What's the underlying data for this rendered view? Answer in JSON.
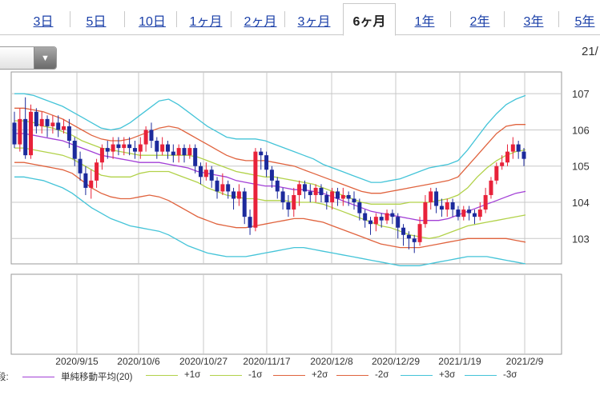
{
  "tabs": [
    {
      "label": "3日",
      "active": false
    },
    {
      "label": "5日",
      "active": false
    },
    {
      "label": "10日",
      "active": false
    },
    {
      "label": "1ヶ月",
      "active": false
    },
    {
      "label": "2ヶ月",
      "active": false
    },
    {
      "label": "3ヶ月",
      "active": false
    },
    {
      "label": "6ヶ月",
      "active": true
    },
    {
      "label": "1年",
      "active": false
    },
    {
      "label": "2年",
      "active": false
    },
    {
      "label": "3年",
      "active": false
    },
    {
      "label": "5年",
      "active": false
    }
  ],
  "toolbar": {
    "dropdown_icon": "triangle-down-icon",
    "corner_date": "21/"
  },
  "legend": {
    "prefix": "段:",
    "items": [
      {
        "label": "単純移動平均(20)",
        "color": "#a23fd6"
      },
      {
        "label": "+1σ",
        "color": "#b2d24a"
      },
      {
        "label": "-1σ",
        "color": "#b2d24a"
      },
      {
        "label": "+2σ",
        "color": "#e0633e"
      },
      {
        "label": "-2σ",
        "color": "#e0633e"
      },
      {
        "label": "+3σ",
        "color": "#44c4d8"
      },
      {
        "label": "-3σ",
        "color": "#44c4d8"
      }
    ]
  },
  "colors": {
    "up": "#e8223a",
    "down": "#1c2a9c",
    "grid": "#c8c8c8",
    "frame": "#9a9a9a"
  },
  "chart_data": {
    "type": "candlestick",
    "ylim": [
      102.3,
      107.6
    ],
    "y_ticks": [
      "107",
      "106",
      "105",
      "104",
      "103"
    ],
    "x_labels": [
      "2020/9/15",
      "2020/10/6",
      "2020/10/27",
      "2020/11/17",
      "2020/12/8",
      "2020/12/29",
      "2021/1/19",
      "2021/2/9"
    ],
    "grid": true,
    "candles": [
      [
        106.2,
        105.6,
        106.5,
        105.5
      ],
      [
        105.6,
        106.3,
        106.6,
        105.4
      ],
      [
        106.3,
        105.3,
        106.9,
        105.2
      ],
      [
        105.3,
        106.5,
        106.7,
        105.2
      ],
      [
        106.5,
        106.1,
        106.6,
        105.9
      ],
      [
        106.1,
        106.3,
        106.5,
        105.9
      ],
      [
        106.3,
        106.1,
        106.4,
        105.8
      ],
      [
        106.1,
        106.2,
        106.4,
        105.9
      ],
      [
        106.2,
        106.0,
        106.4,
        105.8
      ],
      [
        106.0,
        106.1,
        106.3,
        105.9
      ],
      [
        106.1,
        105.7,
        106.3,
        105.5
      ],
      [
        105.7,
        105.2,
        105.8,
        105.0
      ],
      [
        105.2,
        104.8,
        105.4,
        104.6
      ],
      [
        104.8,
        104.4,
        105.0,
        104.2
      ],
      [
        104.4,
        104.6,
        104.9,
        104.1
      ],
      [
        104.6,
        105.1,
        105.2,
        104.4
      ],
      [
        105.1,
        105.5,
        105.6,
        104.9
      ],
      [
        105.5,
        105.4,
        105.7,
        105.2
      ],
      [
        105.4,
        105.6,
        105.8,
        105.2
      ],
      [
        105.6,
        105.5,
        105.8,
        105.3
      ],
      [
        105.5,
        105.6,
        105.8,
        105.3
      ],
      [
        105.6,
        105.5,
        105.8,
        105.3
      ],
      [
        105.5,
        105.4,
        105.7,
        105.2
      ],
      [
        105.4,
        105.6,
        105.8,
        105.2
      ],
      [
        105.6,
        106.0,
        106.1,
        105.4
      ],
      [
        106.0,
        105.7,
        106.2,
        105.5
      ],
      [
        105.7,
        105.4,
        105.8,
        105.2
      ],
      [
        105.4,
        105.6,
        105.8,
        105.3
      ],
      [
        105.6,
        105.4,
        105.7,
        105.2
      ],
      [
        105.4,
        105.3,
        105.6,
        105.1
      ],
      [
        105.3,
        105.5,
        105.6,
        105.1
      ],
      [
        105.5,
        105.3,
        105.6,
        105.1
      ],
      [
        105.3,
        105.5,
        105.6,
        105.2
      ],
      [
        105.5,
        105.0,
        105.6,
        104.8
      ],
      [
        105.0,
        104.7,
        105.1,
        104.5
      ],
      [
        104.7,
        104.9,
        105.1,
        104.6
      ],
      [
        104.9,
        104.6,
        105.0,
        104.4
      ],
      [
        104.6,
        104.3,
        104.7,
        104.1
      ],
      [
        104.3,
        104.5,
        104.8,
        104.2
      ],
      [
        104.5,
        104.3,
        104.6,
        104.1
      ],
      [
        104.3,
        104.1,
        104.4,
        103.8
      ],
      [
        104.1,
        104.3,
        104.5,
        103.9
      ],
      [
        104.3,
        103.6,
        104.4,
        103.4
      ],
      [
        103.6,
        103.3,
        103.8,
        103.1
      ],
      [
        103.3,
        105.4,
        105.5,
        103.2
      ],
      [
        105.4,
        105.3,
        105.5,
        104.9
      ],
      [
        105.3,
        104.9,
        105.4,
        104.7
      ],
      [
        104.9,
        104.6,
        105.0,
        104.4
      ],
      [
        104.6,
        104.3,
        104.7,
        104.1
      ],
      [
        104.3,
        104.0,
        104.4,
        103.8
      ],
      [
        104.0,
        103.8,
        104.2,
        103.6
      ],
      [
        103.8,
        104.2,
        104.4,
        103.6
      ],
      [
        104.2,
        104.5,
        104.6,
        103.9
      ],
      [
        104.5,
        104.3,
        104.6,
        104.1
      ],
      [
        104.3,
        104.2,
        104.5,
        104.0
      ],
      [
        104.2,
        104.4,
        104.5,
        104.0
      ],
      [
        104.4,
        104.2,
        104.5,
        104.0
      ],
      [
        104.2,
        104.0,
        104.3,
        103.8
      ],
      [
        104.0,
        104.3,
        104.4,
        103.8
      ],
      [
        104.3,
        104.1,
        104.4,
        103.9
      ],
      [
        104.1,
        104.2,
        104.4,
        103.9
      ],
      [
        104.2,
        104.1,
        104.3,
        103.9
      ],
      [
        104.1,
        104.0,
        104.3,
        103.8
      ],
      [
        104.0,
        103.7,
        104.1,
        103.5
      ],
      [
        103.7,
        103.5,
        103.8,
        103.3
      ],
      [
        103.5,
        103.4,
        103.6,
        103.1
      ],
      [
        103.4,
        103.6,
        103.7,
        103.2
      ],
      [
        103.6,
        103.5,
        103.7,
        103.3
      ],
      [
        103.5,
        103.7,
        103.8,
        103.4
      ],
      [
        103.7,
        103.6,
        103.8,
        103.4
      ],
      [
        103.6,
        103.3,
        103.7,
        103.0
      ],
      [
        103.3,
        103.1,
        103.4,
        102.8
      ],
      [
        103.1,
        103.0,
        103.2,
        102.7
      ],
      [
        103.0,
        102.9,
        103.1,
        102.6
      ],
      [
        102.9,
        103.4,
        103.6,
        102.8
      ],
      [
        103.4,
        104.0,
        104.2,
        103.3
      ],
      [
        104.0,
        104.3,
        104.4,
        103.8
      ],
      [
        104.3,
        103.9,
        104.4,
        103.7
      ],
      [
        103.9,
        103.8,
        104.1,
        103.6
      ],
      [
        103.8,
        104.0,
        104.1,
        103.6
      ],
      [
        104.0,
        103.8,
        104.1,
        103.6
      ],
      [
        103.8,
        103.6,
        103.9,
        103.5
      ],
      [
        103.6,
        103.8,
        103.9,
        103.5
      ],
      [
        103.8,
        103.7,
        103.9,
        103.5
      ],
      [
        103.7,
        103.6,
        103.8,
        103.4
      ],
      [
        103.6,
        103.8,
        104.0,
        103.5
      ],
      [
        103.8,
        104.2,
        104.4,
        103.7
      ],
      [
        104.2,
        104.6,
        104.7,
        104.1
      ],
      [
        104.6,
        105.0,
        105.1,
        104.5
      ],
      [
        105.0,
        105.1,
        105.3,
        104.9
      ],
      [
        105.1,
        105.4,
        105.6,
        105.0
      ],
      [
        105.4,
        105.6,
        105.8,
        105.2
      ],
      [
        105.6,
        105.4,
        105.7,
        105.2
      ],
      [
        105.4,
        105.2,
        105.5,
        105.0
      ]
    ],
    "series": [
      {
        "name": "単純移動平均(20)",
        "values": [
          105.9,
          105.9,
          105.85,
          105.8,
          105.75,
          105.7,
          105.6,
          105.5,
          105.4,
          105.3,
          105.25,
          105.2,
          105.15,
          105.1,
          105.1,
          105.1,
          105.05,
          105.0,
          104.95,
          104.85,
          104.8,
          104.75,
          104.7,
          104.6,
          104.55,
          104.5,
          104.45,
          104.45,
          104.4,
          104.35,
          104.35,
          104.3,
          104.25,
          104.15,
          104.05,
          103.95,
          103.85,
          103.75,
          103.7,
          103.65,
          103.6,
          103.55,
          103.5,
          103.5,
          103.5,
          103.55,
          103.65,
          103.75,
          103.85,
          103.95,
          104.05,
          104.15,
          104.25,
          104.3
        ]
      },
      {
        "name": "+1σ",
        "values": [
          106.25,
          106.25,
          106.2,
          106.1,
          106.05,
          105.95,
          105.85,
          105.7,
          105.6,
          105.5,
          105.45,
          105.4,
          105.35,
          105.3,
          105.3,
          105.3,
          105.3,
          105.3,
          105.3,
          105.25,
          105.15,
          105.05,
          104.95,
          104.85,
          104.8,
          104.75,
          104.7,
          104.7,
          104.65,
          104.6,
          104.55,
          104.5,
          104.4,
          104.3,
          104.2,
          104.1,
          104.0,
          103.95,
          103.95,
          103.95,
          103.95,
          104.0,
          104.0,
          104.0,
          104.05,
          104.1,
          104.2,
          104.4,
          104.7,
          104.95,
          105.15,
          105.3,
          105.4,
          105.45
        ]
      },
      {
        "name": "-1σ",
        "values": [
          105.5,
          105.5,
          105.45,
          105.4,
          105.35,
          105.3,
          105.2,
          105.05,
          104.9,
          104.75,
          104.7,
          104.7,
          104.7,
          104.8,
          104.85,
          104.85,
          104.85,
          104.75,
          104.65,
          104.55,
          104.4,
          104.3,
          104.2,
          104.15,
          104.1,
          104.1,
          104.05,
          104.05,
          104.05,
          104.0,
          104.0,
          104.0,
          103.95,
          103.85,
          103.75,
          103.65,
          103.55,
          103.45,
          103.35,
          103.3,
          103.2,
          103.1,
          103.05,
          103.0,
          103.05,
          103.15,
          103.25,
          103.35,
          103.4,
          103.45,
          103.5,
          103.55,
          103.6,
          103.65
        ]
      },
      {
        "name": "+2σ",
        "values": [
          106.6,
          106.6,
          106.55,
          106.5,
          106.4,
          106.3,
          106.15,
          106.0,
          105.85,
          105.75,
          105.7,
          105.7,
          105.75,
          105.85,
          105.95,
          106.05,
          106.1,
          106.05,
          105.9,
          105.75,
          105.6,
          105.45,
          105.3,
          105.2,
          105.15,
          105.15,
          105.15,
          105.1,
          105.05,
          105.0,
          104.9,
          104.8,
          104.7,
          104.6,
          104.5,
          104.4,
          104.3,
          104.25,
          104.25,
          104.3,
          104.35,
          104.4,
          104.45,
          104.5,
          104.55,
          104.6,
          104.7,
          105.0,
          105.3,
          105.6,
          105.9,
          106.1,
          106.15,
          106.15
        ]
      },
      {
        "name": "-2σ",
        "values": [
          105.1,
          105.1,
          105.05,
          105.0,
          104.95,
          104.9,
          104.8,
          104.6,
          104.4,
          104.25,
          104.15,
          104.1,
          104.1,
          104.15,
          104.2,
          104.15,
          104.05,
          103.9,
          103.75,
          103.6,
          103.5,
          103.4,
          103.35,
          103.3,
          103.3,
          103.35,
          103.4,
          103.45,
          103.5,
          103.55,
          103.55,
          103.5,
          103.45,
          103.35,
          103.25,
          103.15,
          103.05,
          102.95,
          102.85,
          102.8,
          102.75,
          102.75,
          102.75,
          102.8,
          102.85,
          102.9,
          102.95,
          103.0,
          103.0,
          103.0,
          103.0,
          103.0,
          102.95,
          102.9
        ]
      },
      {
        "name": "+3σ",
        "values": [
          107.0,
          107.0,
          106.95,
          106.85,
          106.75,
          106.65,
          106.5,
          106.35,
          106.2,
          106.05,
          106.0,
          106.05,
          106.2,
          106.4,
          106.6,
          106.8,
          106.85,
          106.7,
          106.5,
          106.3,
          106.1,
          105.95,
          105.8,
          105.75,
          105.75,
          105.75,
          105.7,
          105.6,
          105.5,
          105.4,
          105.3,
          105.2,
          105.05,
          104.95,
          104.85,
          104.75,
          104.65,
          104.55,
          104.55,
          104.6,
          104.65,
          104.75,
          104.85,
          104.95,
          105.0,
          105.05,
          105.15,
          105.45,
          105.8,
          106.15,
          106.45,
          106.7,
          106.85,
          106.95
        ]
      },
      {
        "name": "-3σ",
        "values": [
          104.7,
          104.7,
          104.65,
          104.6,
          104.5,
          104.4,
          104.25,
          104.05,
          103.85,
          103.7,
          103.55,
          103.45,
          103.35,
          103.3,
          103.25,
          103.2,
          103.1,
          102.95,
          102.8,
          102.7,
          102.6,
          102.55,
          102.5,
          102.5,
          102.5,
          102.55,
          102.6,
          102.65,
          102.7,
          102.75,
          102.75,
          102.7,
          102.65,
          102.6,
          102.55,
          102.5,
          102.45,
          102.4,
          102.35,
          102.3,
          102.25,
          102.25,
          102.25,
          102.3,
          102.35,
          102.4,
          102.45,
          102.5,
          102.5,
          102.5,
          102.45,
          102.4,
          102.35,
          102.3
        ]
      }
    ]
  }
}
